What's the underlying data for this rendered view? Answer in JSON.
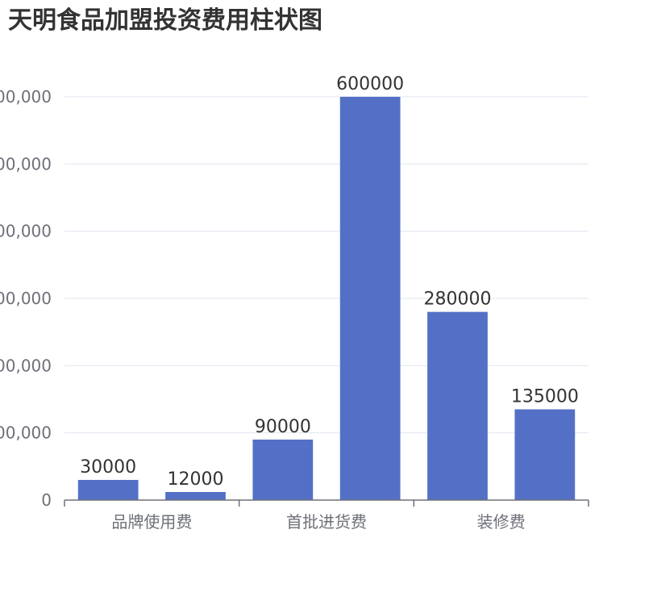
{
  "chart_data": {
    "type": "bar",
    "title": "天明食品加盟投资费用柱状图",
    "categories": [
      "品牌使用费",
      "",
      "首批进货费",
      "",
      "装修费",
      ""
    ],
    "values": [
      30000,
      12000,
      90000,
      600000,
      280000,
      135000
    ],
    "data_labels": [
      "30000",
      "12000",
      "90000",
      "600000",
      "280000",
      "135000"
    ],
    "x_tick_labels": [
      "品牌使用费",
      "首批进货费",
      "装修费"
    ],
    "y_tick_labels": [
      "0",
      "00,000",
      "00,000",
      "00,000",
      "00,000",
      "00,000",
      "00,000"
    ],
    "y_ticks": [
      0,
      100000,
      200000,
      300000,
      400000,
      500000,
      600000
    ],
    "ylim": [
      0,
      600000
    ],
    "grid": true,
    "xlabel": "",
    "ylabel": "",
    "colors": {
      "bar": "#5470c6",
      "grid": "#e0e6f1",
      "axis": "#6e7079"
    }
  }
}
